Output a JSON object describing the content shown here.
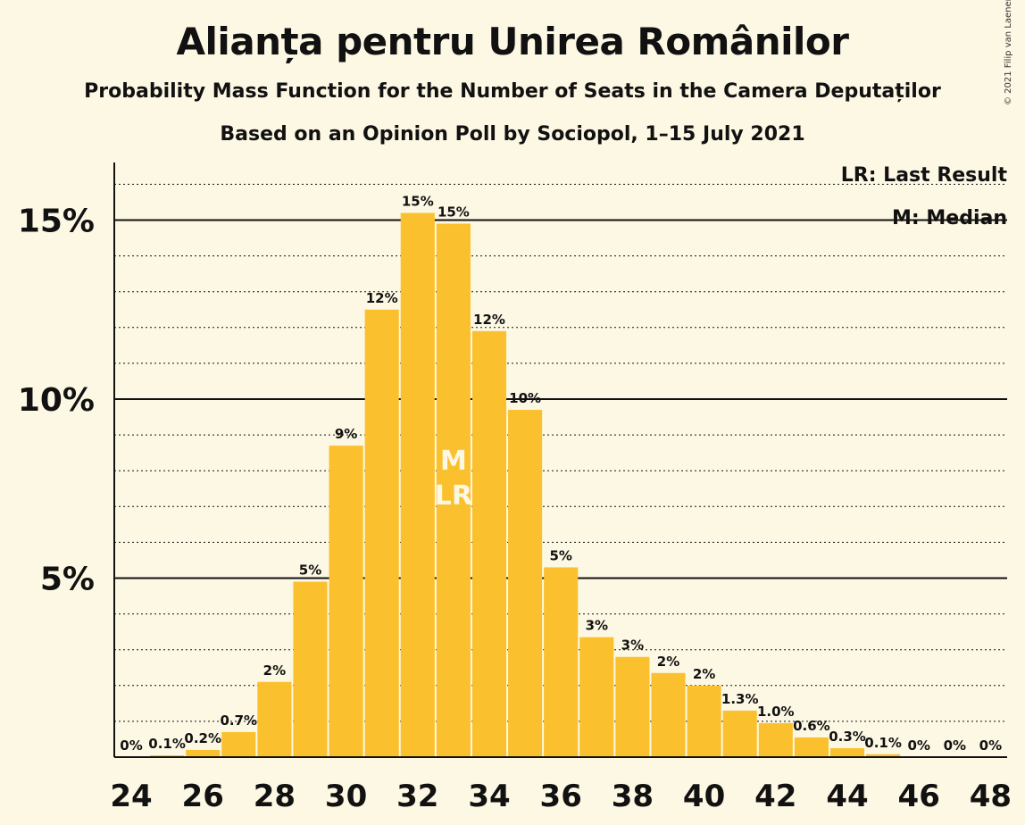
{
  "title": "Alianța pentru Unirea Românilor",
  "subtitle": "Probability Mass Function for the Number of Seats in the Camera Deputaților",
  "subtitle2": "Based on an Opinion Poll by Sociopol, 1–15 July 2021",
  "copyright": "© 2021 Filip van Laenen",
  "legend": {
    "last_result": "LR: Last Result",
    "median": "M: Median"
  },
  "colors": {
    "bar": "#fbc02d",
    "background": "#fdf8e4",
    "text": "#111111"
  },
  "chart_data": {
    "type": "bar",
    "x": [
      24,
      25,
      26,
      27,
      28,
      29,
      30,
      31,
      32,
      33,
      34,
      35,
      36,
      37,
      38,
      39,
      40,
      41,
      42,
      43,
      44,
      45,
      46,
      47,
      48
    ],
    "values": [
      0,
      0.05,
      0.2,
      0.7,
      2.1,
      4.9,
      8.7,
      12.5,
      15.2,
      14.9,
      11.9,
      9.7,
      5.3,
      3.35,
      2.8,
      2.35,
      2.0,
      1.3,
      0.95,
      0.55,
      0.25,
      0.08,
      0,
      0,
      0
    ],
    "data_labels": [
      "0%",
      "0.1%",
      "0.2%",
      "0.7%",
      "2%",
      "5%",
      "9%",
      "12%",
      "15%",
      "15%",
      "12%",
      "10%",
      "5%",
      "3%",
      "3%",
      "2%",
      "2%",
      "1.3%",
      "1.0%",
      "0.6%",
      "0.3%",
      "0.1%",
      "0%",
      "0%",
      "0%"
    ],
    "x_tick_labels": [
      "24",
      "26",
      "28",
      "30",
      "32",
      "34",
      "36",
      "38",
      "40",
      "42",
      "44",
      "46",
      "48"
    ],
    "y_ticks": [
      5,
      10,
      15
    ],
    "y_tick_labels": [
      "5%",
      "10%",
      "15%"
    ],
    "ylim": [
      0,
      16.5
    ],
    "median_seat": 33,
    "last_result_seat": 33,
    "median_marker": "M",
    "last_result_marker": "LR",
    "grid": true,
    "legend_placement": "top-right"
  }
}
